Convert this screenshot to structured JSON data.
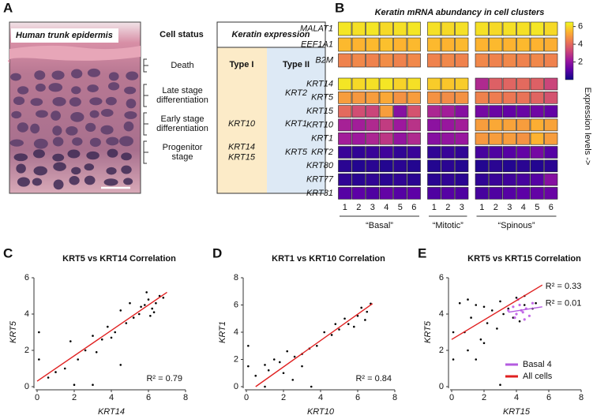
{
  "panel_a": {
    "panel_label": "A",
    "image_caption": "Human trunk epidermis",
    "cell_status": {
      "title": "Cell status",
      "stages": [
        [
          "Death"
        ],
        [
          "Late  stage",
          "differentiation"
        ],
        [
          "Early stage",
          "differentiation"
        ],
        [
          "Progenitor",
          "stage"
        ]
      ]
    },
    "keratin_table": {
      "title": "Keratin expression",
      "columns": [
        "Type I",
        "Type II"
      ],
      "rows": [
        {
          "type_ii": [
            "KRT2"
          ]
        },
        {
          "type_i": [
            "KRT10"
          ],
          "type_ii": [
            "KRT1"
          ]
        },
        {
          "type_i": [
            "KRT14",
            "KRT15"
          ],
          "type_ii": [
            "KRT5"
          ]
        }
      ]
    }
  },
  "chart_data": [
    {
      "type": "heatmap",
      "panel_label": "B",
      "title": "Keratin mRNA abundancy in cell clusters",
      "row_labels": [
        "MALAT1",
        "EEF1A1",
        "B2M",
        "KRT14",
        "KRT5",
        "KRT15",
        "KRT10",
        "KRT1",
        "KRT2",
        "KRT80",
        "KRT77",
        "KRT31"
      ],
      "columns": [
        [
          1,
          2,
          3,
          4,
          5,
          6
        ],
        [
          1,
          2,
          3
        ],
        [
          1,
          2,
          3,
          4,
          5,
          6
        ]
      ],
      "column_groups": [
        "“Basal”",
        "“Mitotic”",
        "“Spinous”"
      ],
      "values": [
        [
          6.2,
          6.1,
          6.2,
          6.0,
          6.1,
          6.2,
          6.1,
          6.0,
          6.1,
          6.1,
          6.0,
          6.1,
          6.1,
          6.2,
          6.0
        ],
        [
          5.5,
          5.4,
          5.5,
          5.6,
          5.4,
          5.5,
          5.5,
          5.4,
          5.5,
          5.4,
          5.5,
          5.4,
          5.5,
          5.4,
          5.3
        ],
        [
          4.5,
          4.6,
          4.5,
          4.7,
          4.5,
          4.6,
          4.5,
          4.6,
          4.5,
          4.6,
          4.5,
          4.6,
          4.5,
          4.6,
          4.5
        ],
        [
          6.2,
          6.0,
          6.1,
          6.2,
          5.9,
          6.1,
          5.8,
          5.7,
          5.8,
          2.6,
          3.8,
          3.9,
          4.0,
          3.8,
          3.2
        ],
        [
          5.0,
          4.9,
          5.0,
          5.2,
          4.8,
          5.0,
          4.8,
          4.7,
          4.8,
          4.5,
          4.4,
          4.3,
          4.2,
          3.9,
          3.5
        ],
        [
          4.0,
          3.4,
          3.2,
          5.0,
          1.8,
          3.5,
          2.5,
          2.3,
          1.8,
          1.5,
          1.3,
          1.2,
          1.3,
          1.4,
          1.2
        ],
        [
          2.4,
          2.3,
          2.6,
          3.0,
          2.2,
          2.8,
          1.9,
          2.1,
          2.3,
          5.0,
          5.2,
          5.1,
          5.0,
          5.3,
          5.1
        ],
        [
          2.3,
          2.2,
          2.5,
          2.9,
          2.0,
          2.6,
          1.8,
          2.0,
          2.1,
          4.9,
          5.0,
          5.0,
          4.8,
          5.4,
          5.0
        ],
        [
          0.6,
          0.5,
          0.6,
          0.7,
          0.5,
          0.6,
          0.5,
          0.6,
          0.5,
          0.8,
          0.9,
          1.0,
          1.2,
          1.5,
          1.0
        ],
        [
          0.4,
          0.3,
          0.4,
          0.3,
          0.4,
          0.3,
          0.3,
          0.4,
          0.3,
          0.3,
          0.4,
          0.3,
          0.4,
          0.3,
          0.4
        ],
        [
          0.5,
          0.4,
          0.5,
          0.4,
          0.5,
          0.4,
          0.4,
          0.5,
          0.4,
          0.5,
          0.6,
          0.7,
          0.8,
          1.0,
          1.8
        ],
        [
          1.0,
          1.1,
          0.9,
          1.2,
          1.0,
          1.1,
          0.9,
          1.0,
          0.9,
          0.8,
          0.9,
          1.0,
          1.1,
          1.2,
          1.3
        ]
      ],
      "colormap": [
        "#0d0887",
        "#5c01a6",
        "#9c179e",
        "#cc4778",
        "#ed7953",
        "#fdb42f",
        "#f0f921"
      ],
      "clim": [
        0,
        6.5
      ],
      "cticks": [
        2,
        4,
        6
      ],
      "colorbar_label": "Expression levels ->"
    },
    {
      "type": "scatter",
      "panel_label": "C",
      "title": "KRT5 vs KRT14 Correlation",
      "xlabel": "KRT14",
      "ylabel": "KRT5",
      "xlim": [
        0,
        8
      ],
      "ylim": [
        0,
        6
      ],
      "xticks": [
        0,
        2,
        4,
        6,
        8
      ],
      "yticks": [
        0,
        2,
        4,
        6
      ],
      "points": {
        "color": "#000000",
        "x": [
          5.8,
          6.0,
          6.2,
          6.4,
          5.5,
          6.6,
          5.9,
          6.1,
          5.2,
          4.8,
          4.5,
          4.2,
          3.8,
          3.5,
          3.0,
          2.6,
          2.2,
          1.8,
          1.5,
          1.0,
          0.6,
          5.0,
          5.6,
          6.3,
          4.0,
          3.2,
          2.0,
          0.1,
          0.1,
          3.0,
          4.5,
          6.8
        ],
        "y": [
          4.5,
          4.8,
          4.3,
          4.6,
          4.0,
          5.0,
          5.2,
          3.9,
          3.8,
          3.5,
          4.2,
          3.0,
          3.3,
          2.6,
          2.8,
          2.0,
          1.5,
          2.5,
          1.0,
          0.8,
          0.5,
          4.6,
          4.4,
          4.1,
          2.7,
          1.9,
          0.1,
          1.5,
          3.0,
          0.1,
          1.2,
          4.9
        ]
      },
      "fit_line": {
        "color": "#e02020",
        "x": [
          0,
          7
        ],
        "values": [
          0.3,
          5.2
        ]
      },
      "annotations": [
        "R² = 0.79"
      ]
    },
    {
      "type": "scatter",
      "panel_label": "D",
      "title": "KRT1 vs KRT10 Correlation",
      "xlabel": "KRT10",
      "ylabel": "KRT1",
      "xlim": [
        0,
        8
      ],
      "ylim": [
        0,
        8
      ],
      "xticks": [
        0,
        2,
        4,
        6,
        8
      ],
      "yticks": [
        0,
        2,
        4,
        6,
        8
      ],
      "points": {
        "color": "#000000",
        "x": [
          5.5,
          6.0,
          6.2,
          5.8,
          6.5,
          5.0,
          4.6,
          4.2,
          3.8,
          3.4,
          3.0,
          2.6,
          2.2,
          1.8,
          1.5,
          1.2,
          1.0,
          0.5,
          2.0,
          2.5,
          3.0,
          5.3,
          6.4,
          4.8,
          0.1,
          0.1,
          1.0,
          3.5,
          6.7
        ],
        "y": [
          4.6,
          5.2,
          5.8,
          4.4,
          5.5,
          4.2,
          3.8,
          4.0,
          3.0,
          2.8,
          2.4,
          2.2,
          2.6,
          1.8,
          2.0,
          1.2,
          1.6,
          0.8,
          1.0,
          0.5,
          1.5,
          5.0,
          4.9,
          4.6,
          3.0,
          1.5,
          0,
          0,
          6.1
        ]
      },
      "fit_line": {
        "color": "#e02020",
        "x": [
          0.5,
          6.8
        ],
        "values": [
          0,
          6.1
        ]
      },
      "annotations": [
        "R² = 0.84"
      ]
    },
    {
      "type": "scatter",
      "panel_label": "E",
      "title": "KRT5 vs KRT15 Correlation",
      "xlabel": "KRT15",
      "ylabel": "KRT5",
      "xlim": [
        0,
        8
      ],
      "ylim": [
        0,
        6
      ],
      "xticks": [
        0,
        2,
        4,
        6,
        8
      ],
      "yticks": [
        0,
        2,
        4,
        6
      ],
      "points": {
        "color": "#000000",
        "x": [
          0.5,
          1,
          1.5,
          2,
          2.5,
          3,
          3.5,
          4,
          4.5,
          5,
          1.2,
          2.2,
          3.2,
          4.2,
          0.8,
          1.8,
          2.8,
          3.8,
          1.0,
          1.5,
          2.0,
          0.1,
          0.1,
          3.0,
          4.5,
          5.2
        ],
        "y": [
          4.6,
          4.8,
          4.5,
          4.4,
          4.2,
          4.7,
          4.3,
          4.9,
          4.5,
          4.3,
          3.8,
          3.5,
          4.0,
          3.6,
          3.0,
          2.6,
          3.2,
          3.8,
          2.0,
          1.5,
          2.4,
          3.0,
          1.5,
          0.1,
          5.0,
          4.6
        ]
      },
      "highlight_points": {
        "color": "#c46ae8",
        "x": [
          3.5,
          3.8,
          4.0,
          4.2,
          4.4,
          4.6,
          4.8,
          5.0,
          4.1,
          4.5,
          3.9,
          4.3
        ],
        "y": [
          4.2,
          4.4,
          4.0,
          4.5,
          4.1,
          4.3,
          3.9,
          4.6,
          4.8,
          3.7,
          3.8,
          4.2
        ]
      },
      "fit_lines": [
        {
          "name": "All cells",
          "color": "#e02020",
          "x": [
            0,
            5.6
          ],
          "values": [
            2.6,
            5.6
          ]
        },
        {
          "name": "Basal 4",
          "color": "#b45ce0",
          "x": [
            3.5,
            5.6
          ],
          "values": [
            4.1,
            4.4
          ]
        }
      ],
      "annotations": [
        "R² = 0.33",
        "R² = 0.01"
      ]
    }
  ]
}
